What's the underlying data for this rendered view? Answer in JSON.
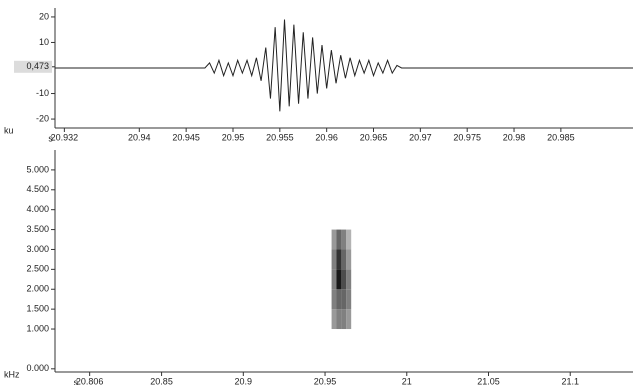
{
  "chart_data": [
    {
      "type": "line",
      "y_unit": "ku",
      "x_unit": "s",
      "xlim": [
        20.931,
        20.9927
      ],
      "ylim": [
        -23.5,
        23.5
      ],
      "xticks": [
        20.932,
        20.94,
        20.945,
        20.95,
        20.955,
        20.96,
        20.965,
        20.97,
        20.975,
        20.98,
        20.985
      ],
      "yticks": [
        20,
        10,
        {
          "value": 0.473,
          "label": "0,473"
        },
        -10,
        -20
      ],
      "color": "#222222",
      "x": [
        20.931,
        20.947,
        20.9475,
        20.948,
        20.9485,
        20.949,
        20.9495,
        20.95,
        20.9505,
        20.951,
        20.9515,
        20.952,
        20.9525,
        20.953,
        20.9535,
        20.954,
        20.9545,
        20.955,
        20.9555,
        20.956,
        20.9565,
        20.957,
        20.9575,
        20.958,
        20.9585,
        20.959,
        20.9595,
        20.96,
        20.9605,
        20.961,
        20.9615,
        20.962,
        20.9625,
        20.963,
        20.9635,
        20.964,
        20.9645,
        20.965,
        20.9655,
        20.966,
        20.9665,
        20.967,
        20.9675,
        20.968,
        20.9927
      ],
      "values": [
        0,
        0,
        2,
        -2,
        3,
        -3,
        2,
        -3,
        3,
        -2,
        3,
        -3,
        4,
        -5,
        8,
        -12,
        16,
        -17,
        19,
        -15,
        17,
        -14,
        14,
        -12,
        12,
        -10,
        9,
        -8,
        7,
        -6,
        5,
        -4,
        4,
        -3,
        3,
        -2,
        3,
        -3,
        2,
        -2,
        3,
        -2,
        1,
        0,
        0
      ]
    },
    {
      "type": "heatmap",
      "y_unit": "kHz",
      "x_unit": "s",
      "xlim": [
        20.7848,
        21.1384
      ],
      "ylim": [
        -0.08,
        5.5
      ],
      "xticks": [
        20.806,
        20.85,
        20.9,
        20.95,
        21,
        21.05,
        21.1
      ],
      "yticks": [
        {
          "value": 5,
          "label": "5.000"
        },
        {
          "value": 4.5,
          "label": "4.500"
        },
        {
          "value": 4,
          "label": "4.000"
        },
        {
          "value": 3.5,
          "label": "3.500"
        },
        {
          "value": 3,
          "label": "3.000"
        },
        {
          "value": 2.5,
          "label": "2.500"
        },
        {
          "value": 2,
          "label": "2.000"
        },
        {
          "value": 1.5,
          "label": "1.500"
        },
        {
          "value": 1,
          "label": "1.000"
        },
        {
          "value": 0,
          "label": "0.000"
        }
      ],
      "x_edges": [
        20.954,
        20.957,
        20.96,
        20.963,
        20.966
      ],
      "y_edges": [
        1.0,
        1.5,
        2.0,
        2.5,
        3.0,
        3.5
      ],
      "z": [
        [
          0.4,
          0.5,
          0.5,
          0.4
        ],
        [
          0.5,
          0.6,
          0.6,
          0.5
        ],
        [
          0.5,
          0.9,
          0.7,
          0.5
        ],
        [
          0.5,
          0.8,
          0.6,
          0.4
        ],
        [
          0.4,
          0.6,
          0.5,
          0.3
        ]
      ]
    }
  ]
}
